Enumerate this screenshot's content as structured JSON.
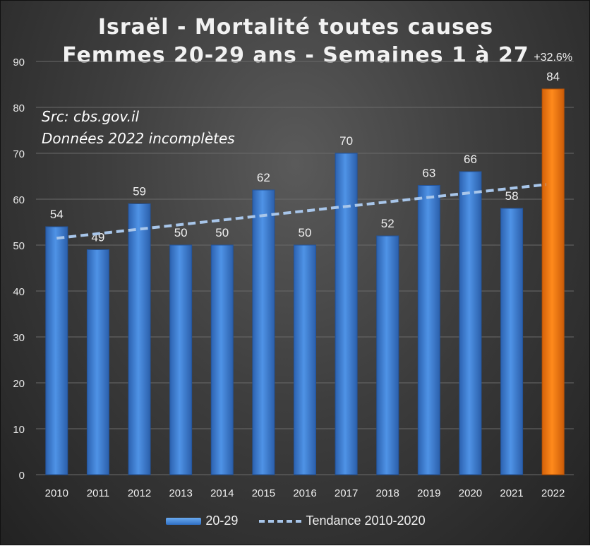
{
  "chart_data": {
    "type": "bar",
    "title": "Israël - Mortalité toutes causes",
    "subtitle": "Femmes 20-29 ans -  Semaines 1 à 27",
    "notes": [
      "Src: cbs.gov.il",
      "Données 2022 incomplètes"
    ],
    "categories": [
      "2010",
      "2011",
      "2012",
      "2013",
      "2014",
      "2015",
      "2016",
      "2017",
      "2018",
      "2019",
      "2020",
      "2021",
      "2022"
    ],
    "series": [
      {
        "name": "20-29",
        "values": [
          54,
          49,
          59,
          50,
          50,
          62,
          50,
          70,
          52,
          63,
          66,
          58,
          84
        ]
      }
    ],
    "highlight": {
      "category": "2022",
      "color": "#f07a10",
      "annotation": "+32.6%"
    },
    "trend": {
      "name": "Tendance 2010-2020",
      "from": "2010",
      "to": "2022",
      "start": 51.5,
      "end": 63.2,
      "color": "#a8c6ea"
    },
    "ylim": [
      0,
      90
    ],
    "yticks": [
      0,
      10,
      20,
      30,
      40,
      50,
      60,
      70,
      80,
      90
    ],
    "grid": true,
    "legend_position": "bottom",
    "colors": {
      "bar": "#3f83d8",
      "highlight": "#f07a10",
      "trend": "#a8c6ea"
    }
  }
}
